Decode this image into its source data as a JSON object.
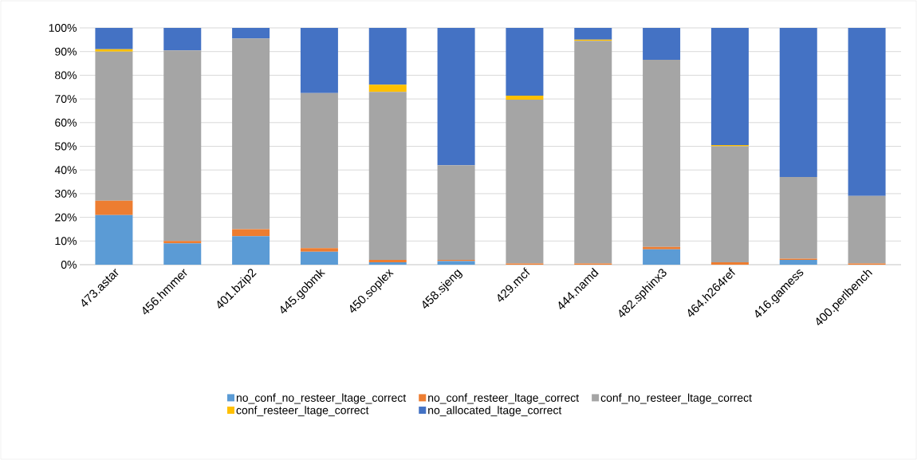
{
  "chart_data": {
    "type": "bar",
    "stacked": true,
    "grid": "y",
    "legend": "bottom",
    "categories": [
      "473.astar",
      "456.hmmer",
      "401.bzip2",
      "445.gobmk",
      "450.soplex",
      "458.sjeng",
      "429.mcf",
      "444.namd",
      "482.sphinx3",
      "464.h264ref",
      "416.gamess",
      "400.perlbench"
    ],
    "ylim": [
      0,
      100
    ],
    "yticks": [
      {
        "value": 0,
        "label": "0%"
      },
      {
        "value": 10,
        "label": "10%"
      },
      {
        "value": 20,
        "label": "20%"
      },
      {
        "value": 30,
        "label": "30%"
      },
      {
        "value": 40,
        "label": "40%"
      },
      {
        "value": 50,
        "label": "50%"
      },
      {
        "value": 60,
        "label": "60%"
      },
      {
        "value": 70,
        "label": "70%"
      },
      {
        "value": 80,
        "label": "80%"
      },
      {
        "value": 90,
        "label": "90%"
      },
      {
        "value": 100,
        "label": "100%"
      }
    ],
    "series": [
      {
        "name": "no_conf_no_resteer_ltage_correct",
        "color": "#5b9bd5",
        "values": [
          21,
          9,
          12,
          5.5,
          1,
          1.5,
          0,
          0,
          6.5,
          0,
          2,
          0
        ]
      },
      {
        "name": "no_conf_resteer_ltage_correct",
        "color": "#ed7d31",
        "values": [
          6,
          1,
          3,
          1.5,
          1,
          0.5,
          0.5,
          0.5,
          1,
          1,
          0.5,
          0.5
        ]
      },
      {
        "name": "conf_no_resteer_ltage_correct",
        "color": "#a5a5a5",
        "values": [
          63,
          80.5,
          80.5,
          65.5,
          71,
          40,
          69.2,
          94,
          79,
          49,
          34.5,
          28.5
        ]
      },
      {
        "name": "conf_resteer_ltage_correct",
        "color": "#ffc000",
        "values": [
          1,
          0,
          0,
          0,
          3,
          0,
          1.7,
          0.5,
          0,
          0.5,
          0,
          0
        ]
      },
      {
        "name": "no_allocated_ltage_correct",
        "color": "#4472c4",
        "values": [
          9,
          9.5,
          4.5,
          27.5,
          24,
          58,
          28.6,
          5,
          13.5,
          49.5,
          63,
          71
        ]
      }
    ]
  }
}
